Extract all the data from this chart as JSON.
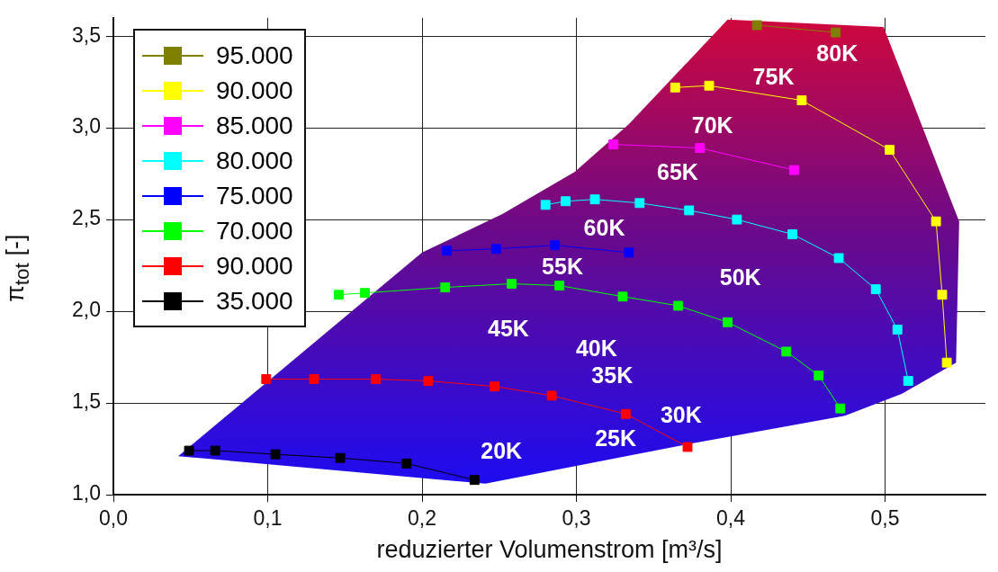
{
  "chart_data": {
    "type": "line",
    "xlabel": "reduzierter Volumenstrom [m³/s]",
    "ylabel": "π$_{tot}$ [-]",
    "xlim": [
      0,
      0.565
    ],
    "ylim": [
      1,
      3.6
    ],
    "xticks": [
      {
        "value": 0,
        "label": "0,0"
      },
      {
        "value": 0.1,
        "label": "0,1"
      },
      {
        "value": 0.2,
        "label": "0,2"
      },
      {
        "value": 0.3,
        "label": "0,3"
      },
      {
        "value": 0.4,
        "label": "0,4"
      },
      {
        "value": 0.5,
        "label": "0,5"
      }
    ],
    "yticks": [
      {
        "value": 1,
        "label": "1,0"
      },
      {
        "value": 1.5,
        "label": "1,5"
      },
      {
        "value": 2,
        "label": "2,0"
      },
      {
        "value": 2.5,
        "label": "2,5"
      },
      {
        "value": 3,
        "label": "3,0"
      },
      {
        "value": 3.5,
        "label": "3,5"
      }
    ],
    "grid": true,
    "legend": "top left",
    "marker": "square",
    "series": [
      {
        "type": "area",
        "marker": "none",
        "color": "#d0083c",
        "x": [
          0.042,
          0.2,
          0.252,
          0.299,
          0.334,
          0.398,
          0.499,
          0.548,
          0.546,
          0.511,
          0.474,
          0.375,
          0.241,
          0.042
        ],
        "values": [
          1.21,
          2.32,
          2.53,
          2.76,
          3.02,
          3.59,
          3.55,
          2.49,
          1.72,
          1.55,
          1.43,
          1.28,
          1.06,
          1.21
        ]
      },
      {
        "name": "95.000",
        "color": "#808000",
        "x": [
          0.417,
          0.468
        ],
        "values": [
          3.56,
          3.52
        ]
      },
      {
        "name": "90.000",
        "color": "#ffff00",
        "x": [
          0.364,
          0.386,
          0.446,
          0.503,
          0.533,
          0.537,
          0.54
        ],
        "values": [
          3.22,
          3.23,
          3.15,
          2.88,
          2.49,
          2.09,
          1.72
        ]
      },
      {
        "name": "85.000",
        "color": "#ff00ff",
        "x": [
          0.324,
          0.38,
          0.441
        ],
        "values": [
          2.91,
          2.89,
          2.77
        ]
      },
      {
        "name": "80.000",
        "color": "#00ffff",
        "x": [
          0.28,
          0.293,
          0.312,
          0.341,
          0.373,
          0.404,
          0.44,
          0.47,
          0.494,
          0.508,
          0.515
        ],
        "values": [
          2.58,
          2.6,
          2.61,
          2.59,
          2.55,
          2.5,
          2.42,
          2.29,
          2.12,
          1.9,
          1.62
        ]
      },
      {
        "name": "75.000",
        "color": "#0000ff",
        "x": [
          0.216,
          0.248,
          0.286,
          0.334
        ],
        "values": [
          2.33,
          2.34,
          2.36,
          2.32
        ]
      },
      {
        "name": "70.000",
        "color": "#00ff00",
        "x": [
          0.146,
          0.163,
          0.215,
          0.258,
          0.289,
          0.33,
          0.366,
          0.398,
          0.436,
          0.457,
          0.471
        ],
        "values": [
          2.09,
          2.1,
          2.13,
          2.15,
          2.14,
          2.08,
          2.03,
          1.94,
          1.78,
          1.65,
          1.47
        ]
      },
      {
        "name": "90.000",
        "color": "#ff0000",
        "x": [
          0.099,
          0.13,
          0.17,
          0.204,
          0.247,
          0.284,
          0.332,
          0.372
        ],
        "values": [
          1.63,
          1.63,
          1.63,
          1.62,
          1.59,
          1.54,
          1.44,
          1.26
        ]
      },
      {
        "name": "35.000",
        "color": "#000000",
        "x": [
          0.049,
          0.066,
          0.105,
          0.147,
          0.19,
          0.234
        ],
        "values": [
          1.24,
          1.24,
          1.22,
          1.2,
          1.17,
          1.08
        ]
      }
    ],
    "annotations": [
      "80K",
      "75K",
      "70K",
      "65K",
      "60K",
      "55K",
      "50K",
      "45K",
      "40K",
      "35K",
      "30K",
      "25K",
      "20K"
    ]
  }
}
